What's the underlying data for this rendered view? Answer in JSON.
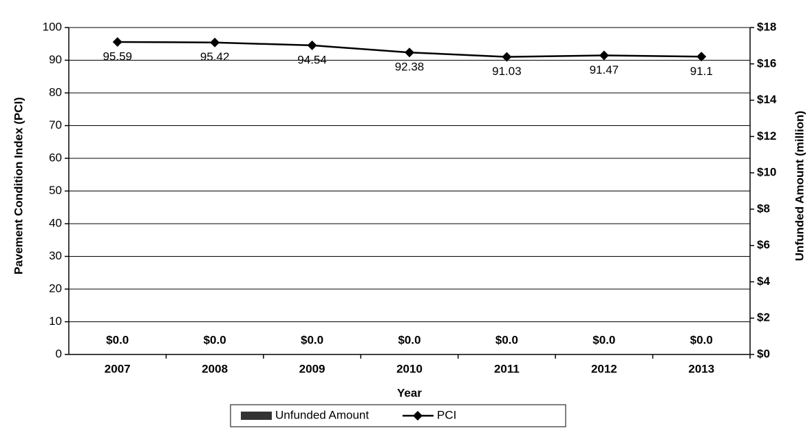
{
  "chart_data": {
    "type": "bar_line",
    "categories": [
      "2007",
      "2008",
      "2009",
      "2010",
      "2011",
      "2012",
      "2013"
    ],
    "series": [
      {
        "name": "Unfunded Amount",
        "color": "#333333",
        "type": "bar",
        "axis": "y2",
        "values": [
          0,
          0,
          0,
          0,
          0,
          0,
          0
        ],
        "value_labels": [
          "$0.0",
          "$0.0",
          "$0.0",
          "$0.0",
          "$0.0",
          "$0.0",
          "$0.0"
        ]
      },
      {
        "name": "PCI",
        "color": "#000000",
        "type": "line",
        "axis": "y",
        "values": [
          95.59,
          95.42,
          94.54,
          92.38,
          91.03,
          91.47,
          91.1
        ]
      }
    ],
    "xlabel": "Year",
    "ylabel": "Pavement Condition Index (PCI)",
    "y2label": "Unfunded Amount (million)",
    "ylim": [
      0,
      100
    ],
    "yticks": [
      0,
      10,
      20,
      30,
      40,
      50,
      60,
      70,
      80,
      90,
      100
    ],
    "y2lim": [
      0,
      18
    ],
    "y2ticks": [
      {
        "value": 0,
        "label": "$0"
      },
      {
        "value": 2,
        "label": "$2"
      },
      {
        "value": 4,
        "label": "$4"
      },
      {
        "value": 6,
        "label": "$6"
      },
      {
        "value": 8,
        "label": "$8"
      },
      {
        "value": 10,
        "label": "$10"
      },
      {
        "value": 12,
        "label": "$12"
      },
      {
        "value": 14,
        "label": "$14"
      },
      {
        "value": 16,
        "label": "$16"
      },
      {
        "value": 18,
        "label": "$18"
      }
    ],
    "grid": true,
    "legend": "bottom"
  }
}
